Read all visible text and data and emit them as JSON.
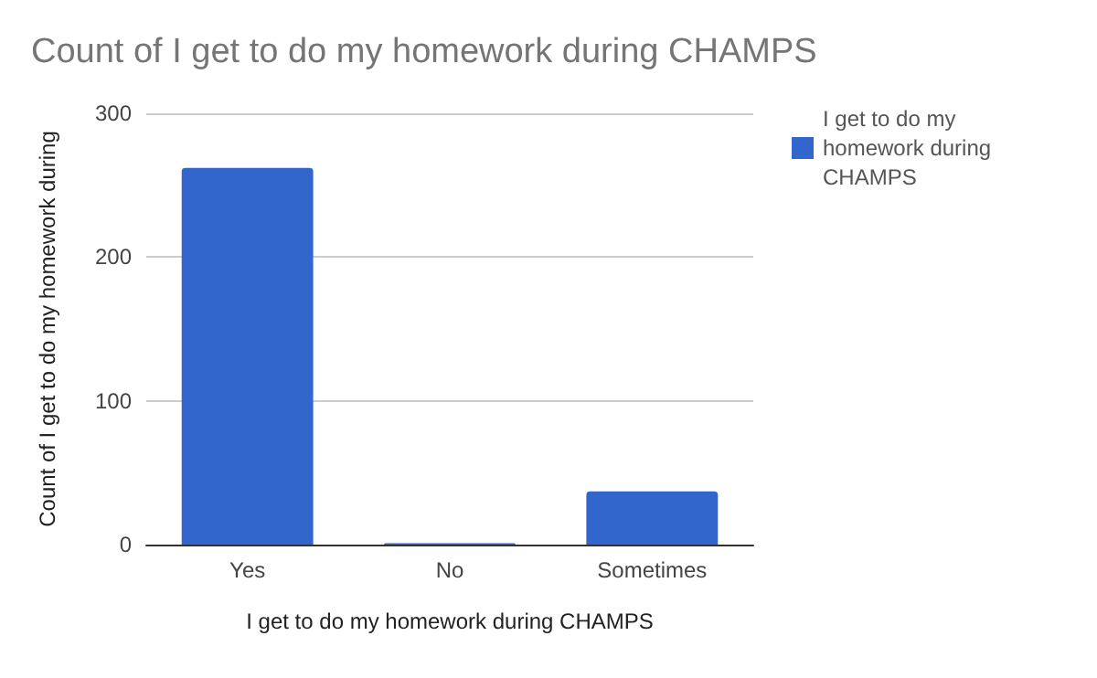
{
  "chart_data": {
    "type": "bar",
    "title": "Count of I get to do my homework during CHAMPS",
    "xlabel": "I get to do my homework during CHAMPS",
    "ylabel": "Count of I get to do my homework during",
    "categories": [
      "Yes",
      "No",
      "Sometimes"
    ],
    "series": [
      {
        "name": "I get to do my homework during CHAMPS",
        "color": "#3366cc",
        "values": [
          262,
          1,
          37
        ]
      }
    ],
    "ylim": [
      0,
      300
    ],
    "yticks": [
      0,
      100,
      200,
      300
    ],
    "grid": "y",
    "legend": "top right"
  }
}
